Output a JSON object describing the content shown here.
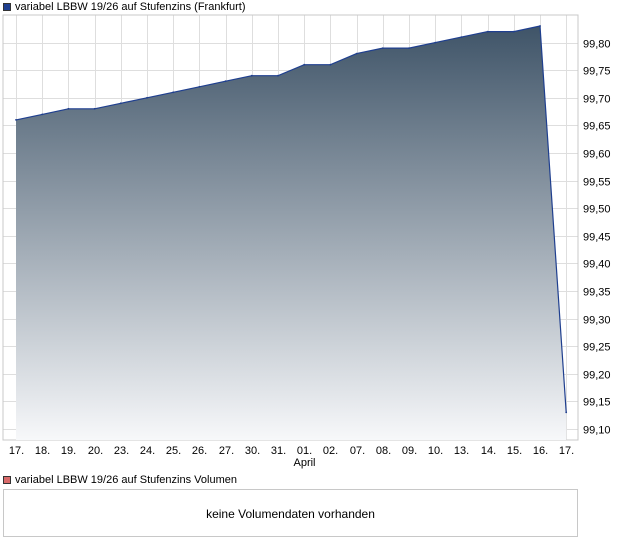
{
  "legend_price": {
    "label": "variabel LBBW 19/26 auf Stufenzins (Frankfurt)",
    "color": "#1f3f8f"
  },
  "legend_volume": {
    "label": "variabel LBBW 19/26 auf Stufenzins Volumen",
    "color": "#d96a6a"
  },
  "volume_message": "keine Volumendaten vorhanden",
  "chart_data": {
    "type": "area",
    "x_ticks": [
      "17.",
      "18.",
      "19.",
      "20.",
      "23.",
      "24.",
      "25.",
      "26.",
      "27.",
      "30.",
      "31.",
      "01.",
      "02.",
      "07.",
      "08.",
      "09.",
      "10.",
      "13.",
      "14.",
      "15.",
      "16.",
      "17."
    ],
    "x_sublabel": {
      "under_tick": "01.",
      "text": "April"
    },
    "x": [
      "17.",
      "18.",
      "19.",
      "20.",
      "23.",
      "24.",
      "25.",
      "26.",
      "27.",
      "30.",
      "31.",
      "01.",
      "02.",
      "07.",
      "08.",
      "09.",
      "10.",
      "13.",
      "14.",
      "15.",
      "16.",
      "17."
    ],
    "values": [
      99.66,
      99.67,
      99.68,
      99.68,
      99.69,
      99.7,
      99.71,
      99.72,
      99.73,
      99.74,
      99.74,
      99.76,
      99.76,
      99.78,
      99.79,
      99.79,
      99.8,
      99.81,
      99.82,
      99.82,
      99.83,
      99.13
    ],
    "y_ticks": [
      "99,10",
      "99,15",
      "99,20",
      "99,25",
      "99,30",
      "99,35",
      "99,40",
      "99,45",
      "99,50",
      "99,55",
      "99,60",
      "99,65",
      "99,70",
      "99,75",
      "99,80"
    ],
    "ylim": [
      99.08,
      99.85
    ],
    "grid": true,
    "line_color": "#1f3f8f",
    "fill_top_color": "#3f5468",
    "fill_bottom_color": "#f7f8fa"
  }
}
